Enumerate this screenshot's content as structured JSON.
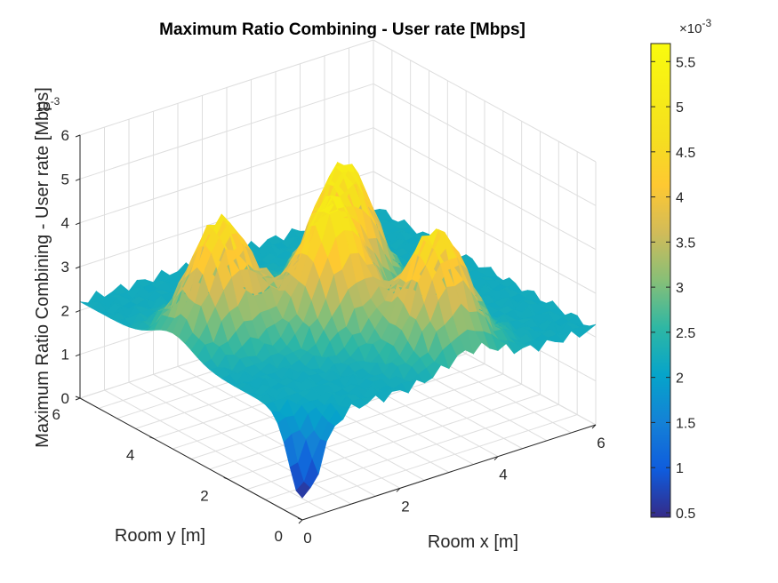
{
  "chart_data": {
    "type": "surface",
    "title": "Maximum Ratio Combining - User rate [Mbps]",
    "xlabel": "Room x [m]",
    "ylabel": "Room y [m]",
    "zlabel": "Maximum Ratio Combining - User rate [Mbps]",
    "xlim": [
      0,
      6
    ],
    "ylim": [
      0,
      6
    ],
    "zlim": [
      0,
      0.006
    ],
    "x_ticks": [
      "0",
      "2",
      "4",
      "6"
    ],
    "y_ticks": [
      "0",
      "2",
      "4",
      "6"
    ],
    "z_ticks": [
      "0",
      "1",
      "2",
      "3",
      "4",
      "5",
      "6"
    ],
    "z_exponent": "10^-3",
    "z_exponent_label": "-3",
    "colorbar": {
      "colormap": "parula",
      "limits": [
        0.00045,
        0.0057
      ],
      "ticks": [
        "0.5",
        "1",
        "1.5",
        "2",
        "2.5",
        "3",
        "3.5",
        "4",
        "4.5",
        "5",
        "5.5"
      ],
      "exponent_prefix": "×10",
      "exponent": "-3"
    },
    "grid": true,
    "grid_x": [
      0,
      0.5,
      1,
      1.5,
      2,
      2.5,
      3,
      3.5,
      4,
      4.5,
      5,
      5.5,
      6
    ],
    "peaks": [
      {
        "x": 2.5,
        "y": 2.5,
        "z": 0.0052
      },
      {
        "x": 3.5,
        "y": 3.5,
        "z": 0.0052
      },
      {
        "x": 3.5,
        "y": 1.0,
        "z": 0.0049
      },
      {
        "x": 1.0,
        "y": 3.5,
        "z": 0.0049
      }
    ],
    "minimum": {
      "x": 0.0,
      "y": 0.0,
      "z": 0.0005
    }
  }
}
